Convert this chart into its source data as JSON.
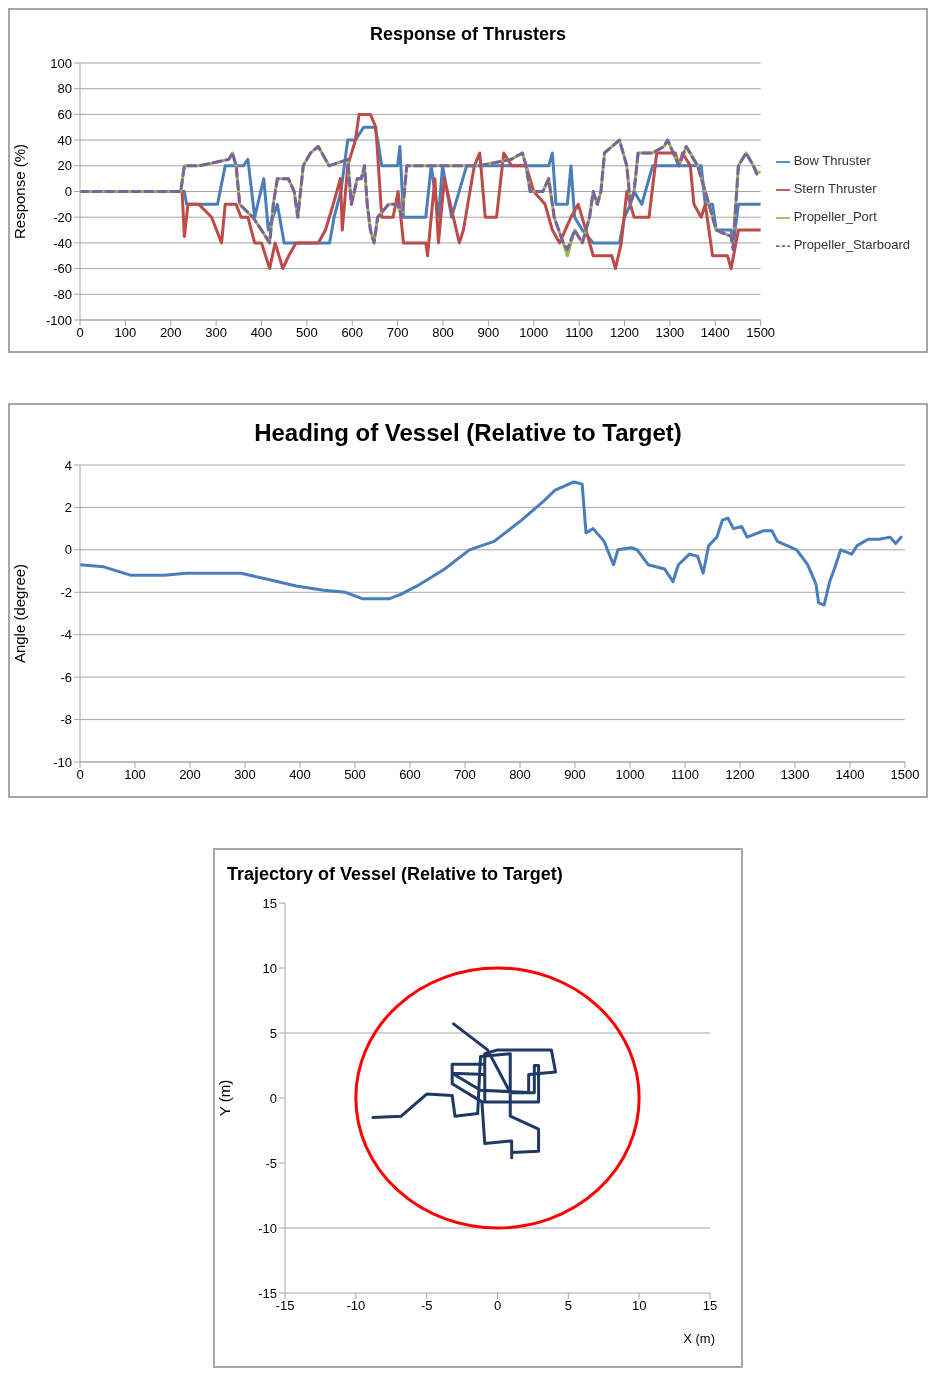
{
  "chart_data": [
    {
      "type": "line",
      "title": "Response of Thrusters",
      "ylabel": "Response (%)",
      "xlim": [
        0,
        1500
      ],
      "xticks": [
        0,
        100,
        200,
        300,
        400,
        500,
        600,
        700,
        800,
        900,
        1000,
        1100,
        1200,
        1300,
        1400,
        1500
      ],
      "ylim": [
        -100,
        100
      ],
      "yticks": [
        -100,
        -80,
        -60,
        -40,
        -20,
        0,
        20,
        40,
        60,
        80,
        100
      ],
      "grid": "y",
      "legend": "right",
      "marker": "none",
      "series": [
        {
          "name": "Bow Thruster",
          "color": "#4a7ebb",
          "x": [
            0,
            230,
            235,
            270,
            303,
            320,
            360,
            370,
            385,
            405,
            415,
            435,
            450,
            550,
            560,
            575,
            590,
            607,
            625,
            650,
            656,
            665,
            700,
            705,
            713,
            729,
            762,
            774,
            790,
            799,
            819,
            852,
            1033,
            1041,
            1049,
            1074,
            1082,
            1090,
            1107,
            1131,
            1189,
            1200,
            1213,
            1221,
            1238,
            1262,
            1369,
            1378,
            1394,
            1402,
            1435,
            1440,
            1451,
            1500
          ],
          "values": [
            0,
            0,
            -10,
            -10,
            -10,
            20,
            20,
            25,
            -20,
            10,
            -30,
            -10,
            -40,
            -40,
            -20,
            0,
            40,
            40,
            50,
            50,
            40,
            20,
            20,
            35,
            -20,
            -20,
            -20,
            20,
            -20,
            20,
            -20,
            20,
            20,
            30,
            -10,
            -10,
            20,
            -20,
            -30,
            -40,
            -40,
            -20,
            -10,
            0,
            -10,
            20,
            20,
            -10,
            -10,
            -30,
            -30,
            -40,
            -10,
            -10
          ]
        },
        {
          "name": "Stern Thruster",
          "color": "#be4b48",
          "x": [
            0,
            225,
            230,
            238,
            262,
            290,
            312,
            320,
            344,
            355,
            370,
            385,
            400,
            418,
            430,
            447,
            460,
            476,
            525,
            541,
            558,
            574,
            578,
            590,
            607,
            615,
            640,
            652,
            665,
            690,
            701,
            713,
            729,
            762,
            766,
            782,
            790,
            803,
            836,
            845,
            869,
            881,
            893,
            918,
            934,
            951,
            983,
            1000,
            1025,
            1041,
            1057,
            1082,
            1098,
            1115,
            1123,
            1131,
            1172,
            1180,
            1193,
            1205,
            1221,
            1254,
            1271,
            1312,
            1320,
            1328,
            1345,
            1353,
            1369,
            1378,
            1386,
            1394,
            1427,
            1435,
            1451,
            1500
          ],
          "values": [
            0,
            0,
            -35,
            -10,
            -10,
            -20,
            -40,
            -10,
            -10,
            -20,
            -20,
            -40,
            -40,
            -60,
            -40,
            -60,
            -50,
            -40,
            -40,
            -30,
            -10,
            10,
            -30,
            20,
            40,
            60,
            60,
            50,
            -20,
            -20,
            0,
            -40,
            -40,
            -40,
            -50,
            10,
            -40,
            10,
            -40,
            -30,
            20,
            30,
            -20,
            -20,
            30,
            20,
            20,
            0,
            -10,
            -30,
            -40,
            -20,
            -10,
            -30,
            -40,
            -50,
            -50,
            -60,
            -40,
            0,
            -20,
            -20,
            30,
            30,
            20,
            30,
            20,
            -10,
            -20,
            -10,
            -30,
            -50,
            -50,
            -60,
            -30,
            -30
          ]
        },
        {
          "name": "Propeller_Port",
          "color": "#98b954",
          "x": [
            0,
            222,
            230,
            262,
            290,
            328,
            336,
            344,
            352,
            381,
            400,
            418,
            426,
            435,
            459,
            472,
            480,
            492,
            508,
            525,
            549,
            590,
            598,
            611,
            620,
            627,
            633,
            640,
            648,
            656,
            680,
            700,
            710,
            720,
            880,
            950,
            975,
            983,
            992,
            1020,
            1033,
            1045,
            1065,
            1074,
            1090,
            1107,
            1123,
            1131,
            1140,
            1148,
            1156,
            1189,
            1205,
            1213,
            1221,
            1230,
            1262,
            1287,
            1295,
            1320,
            1336,
            1361,
            1378,
            1402,
            1435,
            1439,
            1451,
            1468,
            1484,
            1492,
            1500
          ],
          "values": [
            0,
            0,
            20,
            20,
            22,
            25,
            30,
            20,
            -10,
            -20,
            -30,
            -40,
            -10,
            10,
            10,
            0,
            -20,
            20,
            30,
            35,
            20,
            25,
            -10,
            10,
            10,
            20,
            -10,
            -30,
            -40,
            -20,
            -10,
            -10,
            -20,
            20,
            20,
            25,
            30,
            20,
            0,
            0,
            10,
            -20,
            -40,
            -50,
            -30,
            -40,
            -20,
            0,
            -10,
            0,
            30,
            40,
            20,
            -10,
            0,
            30,
            30,
            35,
            40,
            20,
            35,
            20,
            0,
            -30,
            -35,
            -40,
            20,
            30,
            20,
            15,
            15
          ]
        },
        {
          "name": "Propeller_Starboard",
          "color": "#7d60a0",
          "line_style": "dashed",
          "x": [
            0,
            222,
            230,
            262,
            290,
            328,
            336,
            344,
            352,
            381,
            400,
            418,
            426,
            435,
            459,
            472,
            480,
            492,
            508,
            525,
            549,
            590,
            598,
            611,
            620,
            627,
            633,
            640,
            648,
            656,
            680,
            700,
            710,
            720,
            880,
            950,
            975,
            983,
            992,
            1020,
            1033,
            1045,
            1065,
            1074,
            1090,
            1107,
            1123,
            1131,
            1140,
            1148,
            1156,
            1189,
            1205,
            1213,
            1221,
            1230,
            1262,
            1287,
            1295,
            1320,
            1336,
            1361,
            1378,
            1402,
            1435,
            1439,
            1451,
            1468,
            1484,
            1492,
            1500
          ],
          "values": [
            0,
            0,
            20,
            20,
            22,
            25,
            30,
            20,
            -10,
            -20,
            -30,
            -40,
            -10,
            10,
            10,
            0,
            -20,
            20,
            30,
            35,
            20,
            25,
            -10,
            10,
            10,
            20,
            -10,
            -30,
            -40,
            -20,
            -10,
            -10,
            -20,
            20,
            20,
            25,
            30,
            20,
            0,
            0,
            10,
            -20,
            -40,
            -45,
            -30,
            -40,
            -20,
            0,
            -10,
            0,
            30,
            40,
            20,
            -10,
            0,
            30,
            30,
            35,
            40,
            20,
            35,
            20,
            0,
            -30,
            -35,
            -45,
            20,
            30,
            20,
            13,
            13
          ]
        }
      ]
    },
    {
      "type": "line",
      "title": "Heading of Vessel (Relative to Target)",
      "ylabel": "Angle (degree)",
      "xlim": [
        0,
        1500
      ],
      "xticks": [
        0,
        100,
        200,
        300,
        400,
        500,
        600,
        700,
        800,
        900,
        1000,
        1100,
        1200,
        1300,
        1400,
        1500
      ],
      "ylim": [
        -10,
        4
      ],
      "yticks": [
        -10,
        -8,
        -6,
        -4,
        -2,
        0,
        2,
        4
      ],
      "grid": "y",
      "marker": "none",
      "series": [
        {
          "color": "#4a7ebb",
          "x": [
            0,
            43,
            93,
            153,
            193,
            243,
            293,
            343,
            393,
            443,
            483,
            513,
            563,
            583,
            613,
            663,
            708,
            753,
            803,
            843,
            863,
            898,
            913,
            920,
            933,
            953,
            970,
            978,
            1003,
            1013,
            1033,
            1063,
            1078,
            1088,
            1108,
            1123,
            1133,
            1143,
            1158,
            1168,
            1178,
            1188,
            1203,
            1213,
            1243,
            1258,
            1268,
            1303,
            1323,
            1338,
            1343,
            1353,
            1363,
            1373,
            1383,
            1403,
            1413,
            1433,
            1453,
            1473,
            1483,
            1493
          ],
          "values": [
            -0.7,
            -0.8,
            -1.2,
            -1.2,
            -1.1,
            -1.1,
            -1.1,
            -1.4,
            -1.7,
            -1.9,
            -2.0,
            -2.3,
            -2.3,
            -2.1,
            -1.7,
            -0.9,
            0,
            0.4,
            1.4,
            2.3,
            2.8,
            3.2,
            3.1,
            0.8,
            1.0,
            0.4,
            -0.7,
            0,
            0.1,
            0,
            -0.7,
            -0.9,
            -1.5,
            -0.7,
            -0.2,
            -0.3,
            -1.1,
            0.2,
            0.6,
            1.4,
            1.5,
            1.0,
            1.1,
            0.6,
            0.9,
            0.9,
            0.4,
            0,
            -0.7,
            -1.6,
            -2.5,
            -2.6,
            -1.5,
            -0.8,
            0,
            -0.2,
            0.2,
            0.5,
            0.5,
            0.6,
            0.3,
            0.6
          ]
        }
      ]
    },
    {
      "type": "line",
      "title": "Trajectory of Vessel (Relative to Target)",
      "xlabel": "X (m)",
      "ylabel": "Y (m)",
      "xlim": [
        -15,
        15
      ],
      "xticks": [
        -15,
        -10,
        -5,
        0,
        5,
        10,
        15
      ],
      "ylim": [
        -15,
        15
      ],
      "yticks": [
        -15,
        -10,
        -5,
        0,
        5,
        10,
        15
      ],
      "grid": false,
      "marker": "none",
      "ref_lines": [
        {
          "axis": "y",
          "value": 5,
          "color": "#a6a6a6"
        },
        {
          "axis": "y",
          "value": -10,
          "color": "#a6a6a6"
        }
      ],
      "series": [
        {
          "color": "#1f3864",
          "x": [
            -8.8,
            -6.8,
            -5.0,
            -3.2,
            -3.0,
            -1.4,
            -1.2,
            0.9,
            0.9,
            2.9,
            2.9,
            1.0,
            1.0,
            1.0,
            -0.9,
            -1.1,
            -3.2,
            -3.2,
            -0.9,
            -0.9,
            -3.2,
            -1.2,
            2.6,
            2.6,
            2.9,
            2.9,
            -0.9,
            -0.9,
            0,
            3.8,
            4.1,
            2.2,
            2.2,
            0.9,
            -0.7,
            -3.1
          ],
          "values": [
            -1.5,
            -1.4,
            0.3,
            0.2,
            -1.4,
            -1.2,
            3.2,
            3.4,
            -1.4,
            -2.4,
            -4.1,
            -4.2,
            -4.6,
            -3.3,
            -3.5,
            -0.3,
            1.1,
            2.6,
            2.6,
            1.8,
            1.9,
            0.6,
            0.4,
            2.5,
            2.5,
            -0.3,
            -0.3,
            3.4,
            3.7,
            3.7,
            2.0,
            1.8,
            0.4,
            0.4,
            3.7,
            5.7
          ]
        }
      ]
    }
  ]
}
